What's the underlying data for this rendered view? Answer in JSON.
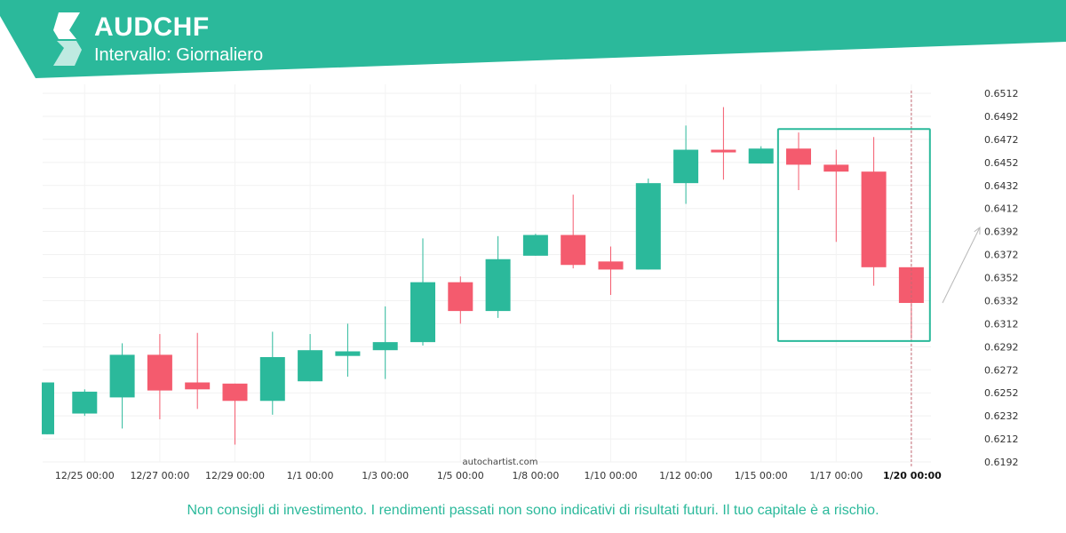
{
  "header": {
    "title": "AUDCHF",
    "subtitle": "Intervallo: Giornaliero"
  },
  "colors": {
    "brand": "#2bb99b",
    "bullish": "#2bb99b",
    "bearish": "#f45b6e",
    "pattern_box": "#2bb99b"
  },
  "watermark": "autochartist.com",
  "disclaimer": "Non consigli di investimento. I rendimenti passati non sono indicativi di risultati futuri. Il tuo capitale è a rischio.",
  "chart_data": {
    "type": "candlestick",
    "ylim": [
      0.6192,
      0.6512
    ],
    "yticks": [
      "0.6512",
      "0.6492",
      "0.6472",
      "0.6452",
      "0.6432",
      "0.6412",
      "0.6392",
      "0.6372",
      "0.6352",
      "0.6332",
      "0.6312",
      "0.6292",
      "0.6272",
      "0.6252",
      "0.6232",
      "0.6212",
      "0.6192"
    ],
    "xtick_labels": [
      "12/25 00:00",
      "12/27 00:00",
      "12/29 00:00",
      "1/1 00:00",
      "1/3 00:00",
      "1/5 00:00",
      "1/8 00:00",
      "1/10 00:00",
      "1/12 00:00",
      "1/15 00:00",
      "1/17 00:00",
      "1/20 00:00"
    ],
    "highlight_label": "1/20 00:00",
    "grid": true,
    "candles": [
      {
        "open": 0.6216,
        "high": 0.6261,
        "low": 0.6216,
        "close": 0.6261
      },
      {
        "open": 0.6234,
        "high": 0.6255,
        "low": 0.6232,
        "close": 0.6253
      },
      {
        "open": 0.6248,
        "high": 0.6295,
        "low": 0.6221,
        "close": 0.6285
      },
      {
        "open": 0.6285,
        "high": 0.6303,
        "low": 0.6229,
        "close": 0.6254
      },
      {
        "open": 0.6261,
        "high": 0.6304,
        "low": 0.6238,
        "close": 0.6255
      },
      {
        "open": 0.626,
        "high": 0.626,
        "low": 0.6207,
        "close": 0.6245
      },
      {
        "open": 0.6245,
        "high": 0.6305,
        "low": 0.6233,
        "close": 0.6283
      },
      {
        "open": 0.6262,
        "high": 0.6303,
        "low": 0.6262,
        "close": 0.6289
      },
      {
        "open": 0.6284,
        "high": 0.6312,
        "low": 0.6266,
        "close": 0.6288
      },
      {
        "open": 0.6289,
        "high": 0.6327,
        "low": 0.6264,
        "close": 0.6296
      },
      {
        "open": 0.6296,
        "high": 0.6386,
        "low": 0.6293,
        "close": 0.6348
      },
      {
        "open": 0.6348,
        "high": 0.6353,
        "low": 0.6312,
        "close": 0.6323
      },
      {
        "open": 0.6323,
        "high": 0.6388,
        "low": 0.6317,
        "close": 0.6368
      },
      {
        "open": 0.6371,
        "high": 0.639,
        "low": 0.6371,
        "close": 0.6389
      },
      {
        "open": 0.6389,
        "high": 0.6424,
        "low": 0.636,
        "close": 0.6363
      },
      {
        "open": 0.6366,
        "high": 0.6379,
        "low": 0.6337,
        "close": 0.6359
      },
      {
        "open": 0.6359,
        "high": 0.6438,
        "low": 0.6359,
        "close": 0.6434
      },
      {
        "open": 0.6434,
        "high": 0.6484,
        "low": 0.6416,
        "close": 0.6463
      },
      {
        "open": 0.6463,
        "high": 0.65,
        "low": 0.6437,
        "close": 0.6461
      },
      {
        "open": 0.6451,
        "high": 0.6466,
        "low": 0.6451,
        "close": 0.6464
      },
      {
        "open": 0.6464,
        "high": 0.6478,
        "low": 0.6428,
        "close": 0.645
      },
      {
        "open": 0.645,
        "high": 0.6463,
        "low": 0.6383,
        "close": 0.6444
      },
      {
        "open": 0.6444,
        "high": 0.6474,
        "low": 0.6345,
        "close": 0.6361
      },
      {
        "open": 0.6361,
        "high": 0.6361,
        "low": 0.6299,
        "close": 0.633
      }
    ],
    "pattern_box": {
      "first_candle": 19.5,
      "last_candle": 23.4,
      "high": 0.6481,
      "low": 0.6297
    }
  }
}
